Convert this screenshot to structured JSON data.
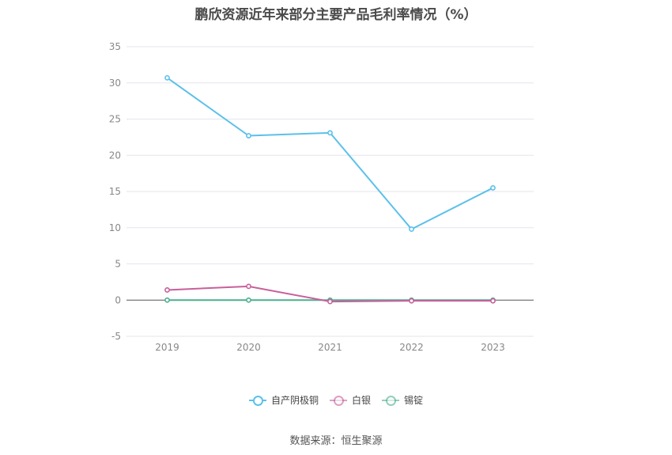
{
  "title": "鹏欣资源近年来部分主要产品毛利率情况（%）",
  "source": "数据来源：恒生聚源",
  "chart_data": {
    "type": "line",
    "title": "鹏欣资源近年来部分主要产品毛利率情况（%）",
    "categories": [
      "2019",
      "2020",
      "2021",
      "2022",
      "2023"
    ],
    "ylim": [
      -5,
      35
    ],
    "yticks": [
      -5,
      0,
      5,
      10,
      15,
      20,
      25,
      30,
      35
    ],
    "grid": true,
    "legend_position": "bottom",
    "series": [
      {
        "name": "自产阴极铜",
        "color": "#5bc0eb",
        "values": [
          30.7,
          22.7,
          23.1,
          9.8,
          15.5
        ]
      },
      {
        "name": "白银",
        "color": "#c7609a",
        "values": [
          1.4,
          1.9,
          -0.2,
          -0.1,
          -0.1
        ]
      },
      {
        "name": "锡锭",
        "color": "#4daf8f",
        "values": [
          0.0,
          0.0,
          0.0,
          0.0,
          0.0
        ]
      }
    ]
  }
}
